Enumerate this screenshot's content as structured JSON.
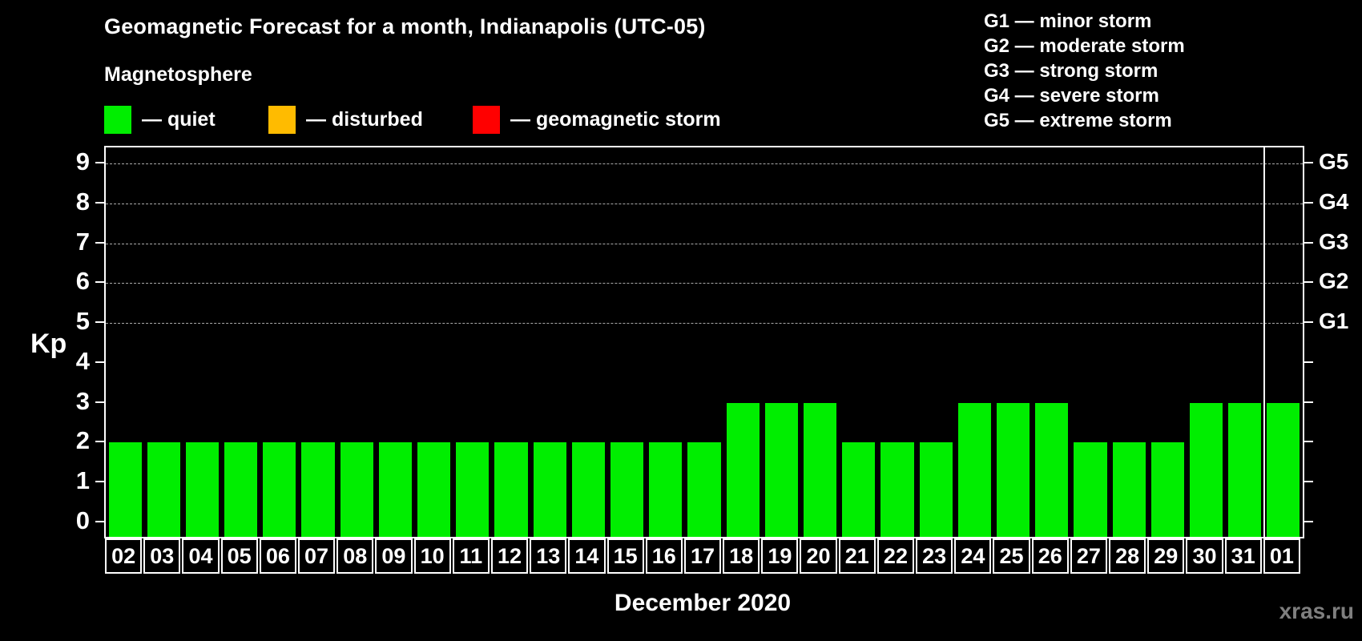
{
  "header": {
    "title": "Geomagnetic Forecast for a month, Indianapolis (UTC-05)",
    "subtitle": "Magnetosphere"
  },
  "legend": {
    "quiet": {
      "label": "— quiet",
      "color": "#00ee00"
    },
    "disturbed": {
      "label": "— disturbed",
      "color": "#ffbb00"
    },
    "storm": {
      "label": "— geomagnetic storm",
      "color": "#ff0000"
    }
  },
  "g_legend": {
    "g1": "G1 — minor storm",
    "g2": "G2 — moderate storm",
    "g3": "G3 — strong storm",
    "g4": "G4 — severe storm",
    "g5": "G5 — extreme storm"
  },
  "chart_data": {
    "type": "bar",
    "title": "Geomagnetic Forecast for a month, Indianapolis (UTC-05)",
    "ylabel": "Kp",
    "xlabel": "December 2020",
    "ylim": [
      0,
      9
    ],
    "y_ticks": [
      0,
      1,
      2,
      3,
      4,
      5,
      6,
      7,
      8,
      9
    ],
    "gridlines_at_kp": [
      5,
      6,
      7,
      8,
      9
    ],
    "grid_on": true,
    "right_axis_labels": [
      {
        "label": "G1",
        "kp": 5
      },
      {
        "label": "G2",
        "kp": 6
      },
      {
        "label": "G3",
        "kp": 7
      },
      {
        "label": "G4",
        "kp": 8
      },
      {
        "label": "G5",
        "kp": 9
      }
    ],
    "categories": [
      "02",
      "03",
      "04",
      "05",
      "06",
      "07",
      "08",
      "09",
      "10",
      "11",
      "12",
      "13",
      "14",
      "15",
      "16",
      "17",
      "18",
      "19",
      "20",
      "21",
      "22",
      "23",
      "24",
      "25",
      "26",
      "27",
      "28",
      "29",
      "30",
      "31",
      "01"
    ],
    "values": [
      2,
      2,
      2,
      2,
      2,
      2,
      2,
      2,
      2,
      2,
      2,
      2,
      2,
      2,
      2,
      2,
      3,
      3,
      3,
      2,
      2,
      2,
      3,
      3,
      3,
      2,
      2,
      2,
      3,
      3,
      3
    ],
    "month_separator_before_index": 30,
    "bar_color_rules": {
      "storm_min_kp": 5,
      "disturbed_min_kp": 4
    }
  },
  "footer": {
    "xaxis_title": "December 2020",
    "watermark": "xras.ru"
  }
}
